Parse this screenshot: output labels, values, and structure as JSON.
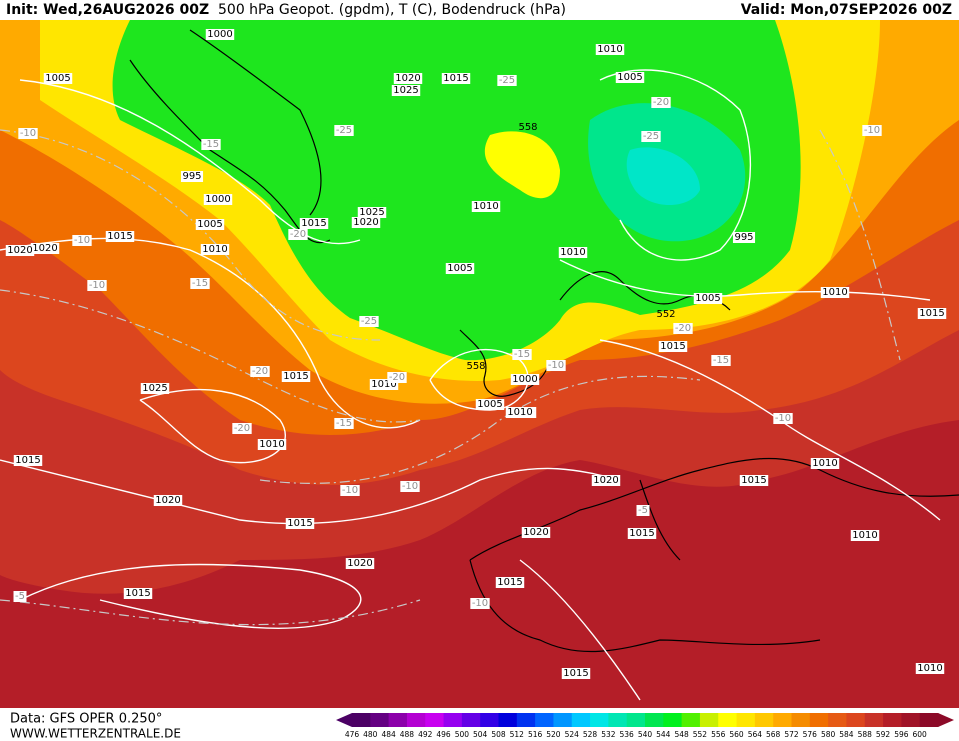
{
  "header": {
    "init": "Init: Wed,26AUG2026 00Z",
    "title": "500 hPa Geopot. (gpdm), T (C), Bodendruck (hPa)",
    "valid": "Valid: Mon,07SEP2026 00Z"
  },
  "footer": {
    "data_source": "Data: GFS OPER 0.250°",
    "website": "WWW.WETTERZENTRALE.DE"
  },
  "colorbar": {
    "labels": [
      "476",
      "480",
      "484",
      "488",
      "492",
      "496",
      "500",
      "504",
      "508",
      "512",
      "516",
      "520",
      "524",
      "528",
      "532",
      "536",
      "540",
      "544",
      "548",
      "552",
      "556",
      "560",
      "564",
      "568",
      "572",
      "576",
      "580",
      "584",
      "588",
      "592",
      "596",
      "600"
    ],
    "colors": [
      "#4b0064",
      "#640082",
      "#8c00aa",
      "#b400d2",
      "#c800f0",
      "#9600f0",
      "#6400e6",
      "#3200e6",
      "#0000dc",
      "#0032f0",
      "#0064ff",
      "#0096ff",
      "#00c8ff",
      "#00e6e6",
      "#00e6b4",
      "#00e68c",
      "#00e650",
      "#00f01e",
      "#50f000",
      "#c8f000",
      "#ffff00",
      "#ffe600",
      "#ffc800",
      "#ffaa00",
      "#f58c00",
      "#f06e00",
      "#e65a14",
      "#dc461e",
      "#c83228",
      "#b41e28",
      "#a01428",
      "#8c0a28"
    ]
  },
  "isobar_labels": [
    "1000",
    "1005",
    "1020",
    "1025",
    "1015",
    "1010",
    "995",
    "1005",
    "1000",
    "1005",
    "1010",
    "1015",
    "1020",
    "1025",
    "1020",
    "1015",
    "1010",
    "1005",
    "1010",
    "1015",
    "1010",
    "995",
    "1005",
    "1010",
    "1015",
    "1010",
    "1025",
    "1020",
    "1015",
    "1010",
    "1015",
    "1000",
    "1005",
    "1010",
    "1020",
    "1015",
    "1015",
    "1010",
    "1010",
    "1020",
    "1015",
    "1015",
    "1020",
    "1015",
    "1020",
    "1010",
    "1015"
  ],
  "isotherm_labels": [
    "-10",
    "-15",
    "-25",
    "-25",
    "-20",
    "-25",
    "-20",
    "-10",
    "-10",
    "-15",
    "-20",
    "-25",
    "-20",
    "-15",
    "-10",
    "-20",
    "-20",
    "-15",
    "-10",
    "-10",
    "-10",
    "-15",
    "-10",
    "-5",
    "-10",
    "-5"
  ],
  "height_labels": [
    "558",
    "552",
    "558"
  ]
}
